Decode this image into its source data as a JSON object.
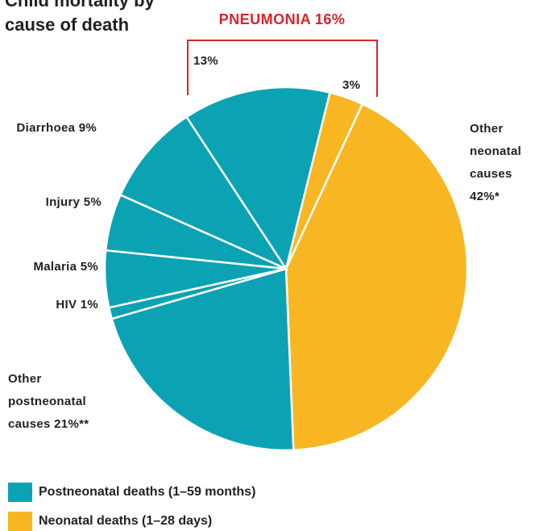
{
  "chart_data": {
    "type": "pie",
    "title": "Child mortality by cause of death",
    "annotation": "PNEUMONIA 16%",
    "categories": [
      null,
      "Other neonatal causes",
      "Other postneonatal causes",
      "HIV",
      "Malaria",
      "Injury",
      "Diarrhoea",
      null
    ],
    "values": [
      3,
      42,
      21,
      1,
      5,
      5,
      9,
      13
    ],
    "value_labels": [
      "3%",
      "42%*",
      "21%**",
      "1%",
      "5%",
      "5%",
      "9%",
      "13%"
    ],
    "colors": [
      "#f8b622",
      "#f8b622",
      "#0ba3b4",
      "#0ba3b4",
      "#0ba3b4",
      "#0ba3b4",
      "#0ba3b4",
      "#0ba3b4"
    ],
    "legend": [
      {
        "name": "Postneonatal deaths (1–59 months)",
        "color": "#0ba3b4"
      },
      {
        "name": "Neonatal deaths (1–28 days)",
        "color": "#f8b622"
      }
    ]
  }
}
